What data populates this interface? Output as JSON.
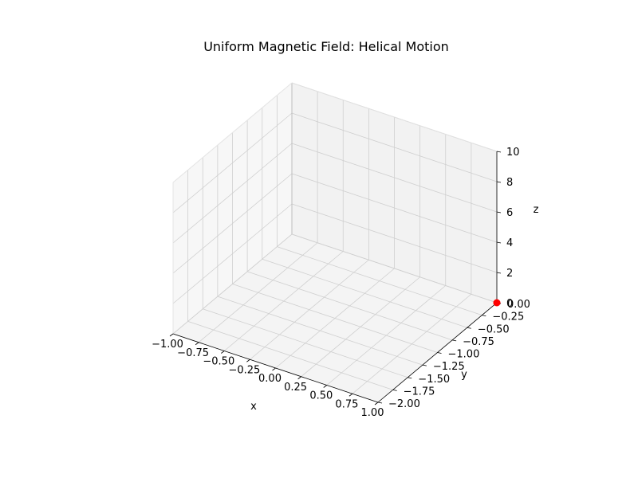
{
  "chart_data": {
    "type": "scatter",
    "projection": "3d",
    "title": "Uniform Magnetic Field: Helical Motion",
    "xlabel": "x",
    "ylabel": "y",
    "zlabel": "z",
    "xlim": [
      -1.0,
      1.0
    ],
    "ylim": [
      -2.0,
      0.0
    ],
    "zlim": [
      0,
      10
    ],
    "x_ticks": [
      -1.0,
      -0.75,
      -0.5,
      -0.25,
      0.0,
      0.25,
      0.5,
      0.75,
      1.0
    ],
    "x_tick_labels": [
      "−1.00",
      "−0.75",
      "−0.50",
      "−0.25",
      "0.00",
      "0.25",
      "0.50",
      "0.75",
      "1.00"
    ],
    "y_ticks": [
      0.0,
      -0.25,
      -0.5,
      -0.75,
      -1.0,
      -1.25,
      -1.5,
      -1.75,
      -2.0
    ],
    "y_tick_labels": [
      "0.00",
      "−0.25",
      "−0.50",
      "−0.75",
      "−1.00",
      "−1.25",
      "−1.50",
      "−1.75",
      "−2.00"
    ],
    "z_ticks": [
      0,
      2,
      4,
      6,
      8,
      10
    ],
    "z_tick_labels": [
      "0",
      "2",
      "4",
      "6",
      "8",
      "10"
    ],
    "grid": true,
    "points": [
      {
        "x": 1.0,
        "y": 0.0,
        "z": 0.0,
        "color": "#ff0000"
      }
    ],
    "colors": {
      "pane_left": "#f7f7f7",
      "pane_back": "#f2f2f2",
      "pane_floor": "#f4f4f4",
      "grid": "#cfcfcf",
      "edge": "#bdbdbd",
      "marker": "#ff0000"
    }
  }
}
